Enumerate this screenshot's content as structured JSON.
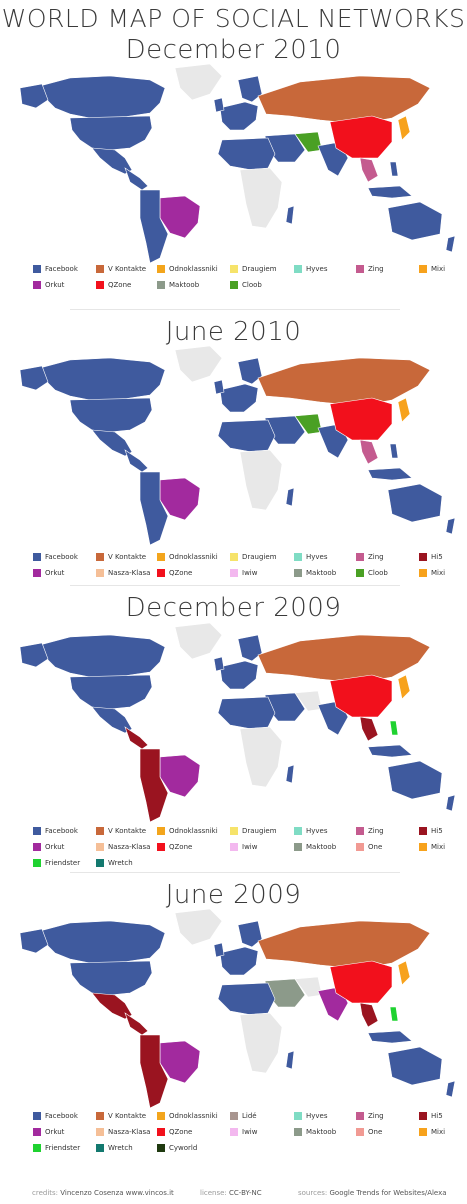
{
  "header": {
    "title": "WORLD MAP OF SOCIAL NETWORKS"
  },
  "colors": {
    "Facebook": "#3f5a9e",
    "V Kontakte": "#c8683a",
    "Odnoklassniki": "#f3a51c",
    "Draugiem": "#f6e36a",
    "Hyves": "#7fdcc4",
    "Zing": "#c45b8f",
    "Mixi": "#f7a21c",
    "Orkut": "#a22a9e",
    "QZone": "#f2101c",
    "Maktoob": "#8c9a8a",
    "Cloob": "#4aa024",
    "Hi5": "#9a1420",
    "Nasza-Klasa": "#f5bf97",
    "Iwiw": "#f3b8ef",
    "One": "#f19a93",
    "Friendster": "#1fd230",
    "Wretch": "#13796f",
    "Lide": "#a8958f",
    "Cyworld": "#1f3a10",
    "none": "#e8e8e8"
  },
  "sections": [
    {
      "title": "December 2010",
      "legend": [
        [
          "Facebook",
          "V Kontakte",
          "Odnoklassniki",
          "Draugiem",
          "Hyves",
          "Zing",
          "Mixi"
        ],
        [
          "Orkut",
          "QZone",
          "Maktoob",
          "Cloob"
        ]
      ]
    },
    {
      "title": "June 2010",
      "legend": [
        [
          "Facebook",
          "V Kontakte",
          "Odnoklassniki",
          "Draugiem",
          "Hyves",
          "Zing",
          "Hi5"
        ],
        [
          "Orkut",
          "Nasza-Klasa",
          "QZone",
          "Iwiw",
          "Maktoob",
          "Cloob",
          "Mixi"
        ]
      ]
    },
    {
      "title": "December 2009",
      "legend": [
        [
          "Facebook",
          "V Kontakte",
          "Odnoklassniki",
          "Draugiem",
          "Hyves",
          "Zing",
          "Hi5"
        ],
        [
          "Orkut",
          "Nasza-Klasa",
          "QZone",
          "Iwiw",
          "Maktoob",
          "One",
          "Mixi"
        ],
        [
          "Friendster",
          "Wretch"
        ]
      ]
    },
    {
      "title": "June 2009",
      "legend": [
        [
          "Facebook",
          "V Kontakte",
          "Odnoklassniki",
          "Lidé",
          "Hyves",
          "Zing",
          "Hi5"
        ],
        [
          "Orkut",
          "Nasza-Klasa",
          "QZone",
          "Iwiw",
          "Maktoob",
          "One",
          "Mixi"
        ],
        [
          "Friendster",
          "Wretch",
          "Cyworld"
        ]
      ]
    }
  ],
  "footer": {
    "credits_label": "credits:",
    "credits_value": "Vincenzo Cosenza  www.vincos.it",
    "license_label": "license:",
    "license_value": "CC-BY-NC",
    "sources_label": "sources:",
    "sources_value": "Google Trends for Websites/Alexa"
  }
}
